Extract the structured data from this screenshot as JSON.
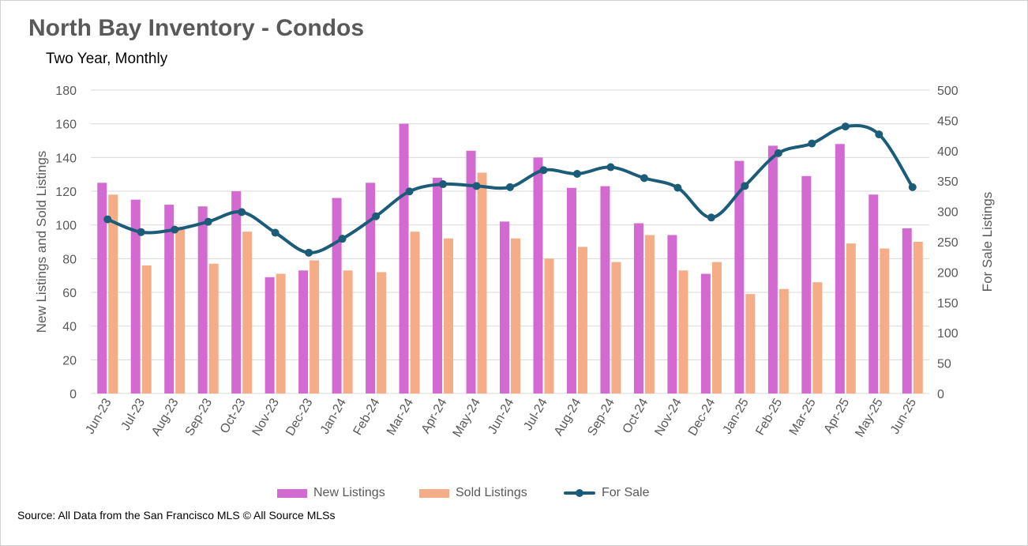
{
  "header": {
    "title": "North Bay Inventory - Condos",
    "subtitle": "Two Year, Monthly"
  },
  "footer": {
    "source": "Source: All Data from the San Francisco MLS © All Source MLSs"
  },
  "colors": {
    "new_listings": "#d36ad1",
    "sold_listings": "#f5ad88",
    "for_sale": "#1b5c78",
    "gridline": "#d9d9d9",
    "axis_text": "#595959"
  },
  "chart_data": {
    "type": "bar",
    "categories": [
      "Jun-23",
      "Jul-23",
      "Aug-23",
      "Sep-23",
      "Oct-23",
      "Nov-23",
      "Dec-23",
      "Jan-24",
      "Feb-24",
      "Mar-24",
      "Apr-24",
      "May-24",
      "Jun-24",
      "Jul-24",
      "Aug-24",
      "Sep-24",
      "Oct-24",
      "Nov-24",
      "Dec-24",
      "Jan-25",
      "Feb-25",
      "Mar-25",
      "Apr-25",
      "May-25",
      "Jun-25"
    ],
    "series": [
      {
        "name": "New Listings",
        "type": "bar",
        "axis": "left",
        "values": [
          125,
          115,
          112,
          111,
          120,
          69,
          73,
          116,
          125,
          160,
          128,
          144,
          102,
          140,
          122,
          123,
          101,
          94,
          71,
          138,
          147,
          129,
          148,
          118,
          98
        ]
      },
      {
        "name": "Sold Listings",
        "type": "bar",
        "axis": "left",
        "values": [
          118,
          76,
          99,
          77,
          96,
          71,
          79,
          73,
          72,
          96,
          92,
          131,
          92,
          80,
          87,
          78,
          94,
          73,
          78,
          59,
          62,
          66,
          89,
          86,
          90
        ]
      },
      {
        "name": "For Sale",
        "type": "line",
        "axis": "right",
        "values": [
          287,
          266,
          270,
          283,
          299,
          265,
          232,
          255,
          292,
          333,
          345,
          342,
          340,
          368,
          362,
          373,
          355,
          339,
          290,
          342,
          396,
          412,
          440,
          427,
          340
        ]
      }
    ],
    "ylabel": "New Listings and Sold Listings",
    "y2label": "For Sale Listings",
    "ylim": [
      0,
      180
    ],
    "yticks": [
      0,
      20,
      40,
      60,
      80,
      100,
      120,
      140,
      160,
      180
    ],
    "y2lim": [
      0,
      500
    ],
    "y2ticks": [
      0,
      50,
      100,
      150,
      200,
      250,
      300,
      350,
      400,
      450,
      500
    ],
    "grid": true,
    "legend_position": "bottom"
  }
}
